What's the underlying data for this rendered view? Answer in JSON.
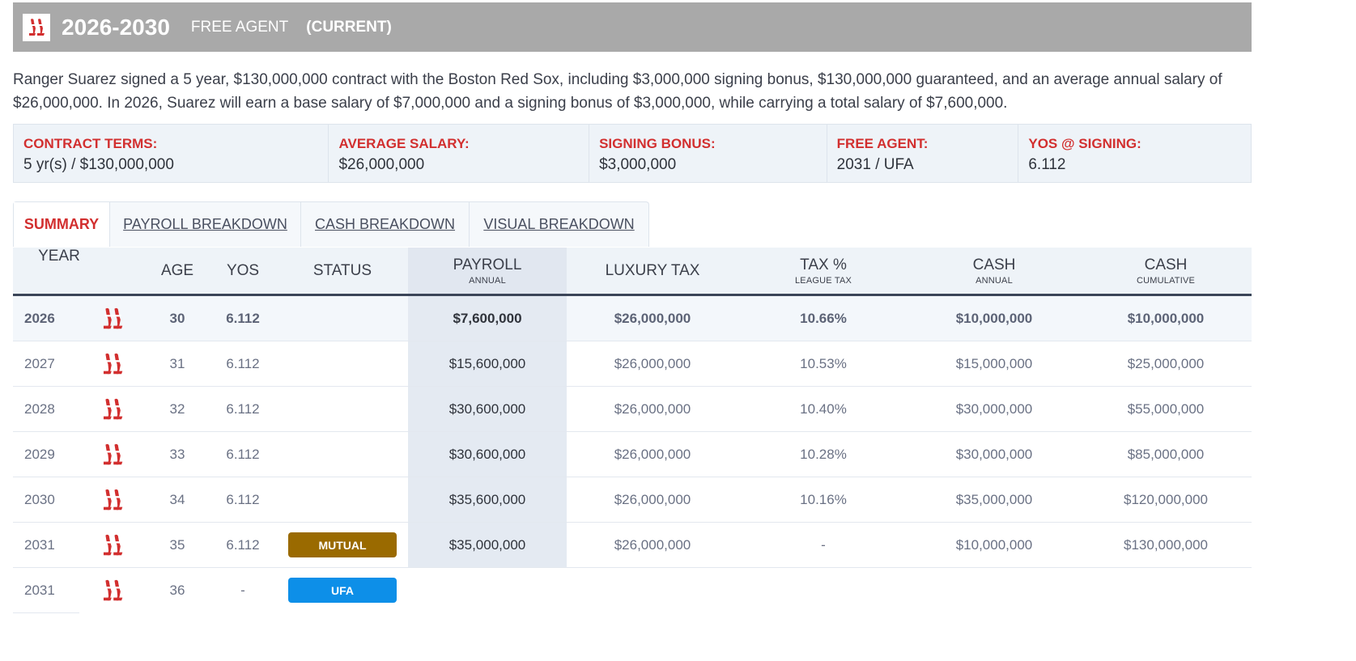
{
  "header": {
    "years": "2026-2030",
    "free_agent_label": "FREE AGENT",
    "current_label": "(CURRENT)",
    "logo_icon": "red-sox-logo-icon"
  },
  "description": "Ranger Suarez signed a 5 year, $130,000,000 contract with the Boston Red Sox, including $3,000,000 signing bonus, $130,000,000 guaranteed, and an average annual salary of $26,000,000. In 2026, Suarez will earn a base salary of $7,000,000 and a signing bonus of $3,000,000, while carrying a total salary of $7,600,000.",
  "terms": [
    {
      "label": "CONTRACT TERMS:",
      "value": "5 yr(s) / $130,000,000"
    },
    {
      "label": "AVERAGE SALARY:",
      "value": "$26,000,000"
    },
    {
      "label": "SIGNING BONUS:",
      "value": "$3,000,000"
    },
    {
      "label": "FREE AGENT:",
      "value": "2031 / UFA"
    },
    {
      "label": "YOS @ SIGNING:",
      "value": "6.112"
    }
  ],
  "tabs": [
    {
      "label": "SUMMARY",
      "active": true
    },
    {
      "label": "PAYROLL BREAKDOWN",
      "active": false
    },
    {
      "label": "CASH BREAKDOWN",
      "active": false
    },
    {
      "label": "VISUAL BREAKDOWN",
      "active": false
    }
  ],
  "table": {
    "headers": {
      "year": "YEAR",
      "age": "AGE",
      "yos": "YOS",
      "status": "STATUS",
      "payroll": "PAYROLL",
      "payroll_sub": "ANNUAL",
      "luxury_tax": "LUXURY TAX",
      "tax_pct": "TAX %",
      "tax_pct_sub": "LEAGUE TAX",
      "cash": "CASH",
      "cash_sub": "ANNUAL",
      "cash_cum": "CASH",
      "cash_cum_sub": "CUMULATIVE"
    },
    "rows": [
      {
        "year": "2026",
        "age": "30",
        "yos": "6.112",
        "status": "",
        "payroll": "$7,600,000",
        "luxury_tax": "$26,000,000",
        "tax_pct": "10.66%",
        "cash": "$10,000,000",
        "cash_cum": "$10,000,000"
      },
      {
        "year": "2027",
        "age": "31",
        "yos": "6.112",
        "status": "",
        "payroll": "$15,600,000",
        "luxury_tax": "$26,000,000",
        "tax_pct": "10.53%",
        "cash": "$15,000,000",
        "cash_cum": "$25,000,000"
      },
      {
        "year": "2028",
        "age": "32",
        "yos": "6.112",
        "status": "",
        "payroll": "$30,600,000",
        "luxury_tax": "$26,000,000",
        "tax_pct": "10.40%",
        "cash": "$30,000,000",
        "cash_cum": "$55,000,000"
      },
      {
        "year": "2029",
        "age": "33",
        "yos": "6.112",
        "status": "",
        "payroll": "$30,600,000",
        "luxury_tax": "$26,000,000",
        "tax_pct": "10.28%",
        "cash": "$30,000,000",
        "cash_cum": "$85,000,000"
      },
      {
        "year": "2030",
        "age": "34",
        "yos": "6.112",
        "status": "",
        "payroll": "$35,600,000",
        "luxury_tax": "$26,000,000",
        "tax_pct": "10.16%",
        "cash": "$35,000,000",
        "cash_cum": "$120,000,000"
      },
      {
        "year": "2031",
        "age": "35",
        "yos": "6.112",
        "status": "MUTUAL",
        "payroll": "$35,000,000",
        "luxury_tax": "$26,000,000",
        "tax_pct": "-",
        "cash": "$10,000,000",
        "cash_cum": "$130,000,000"
      },
      {
        "year": "2031",
        "age": "36",
        "yos": "-",
        "status": "UFA",
        "payroll": "",
        "luxury_tax": "",
        "tax_pct": "",
        "cash": "",
        "cash_cum": ""
      }
    ]
  },
  "colors": {
    "accent_red": "#d22f2f",
    "mutual_badge": "#9a6a00",
    "ufa_badge": "#0d8fe8",
    "header_bg": "#a9a9a9"
  }
}
